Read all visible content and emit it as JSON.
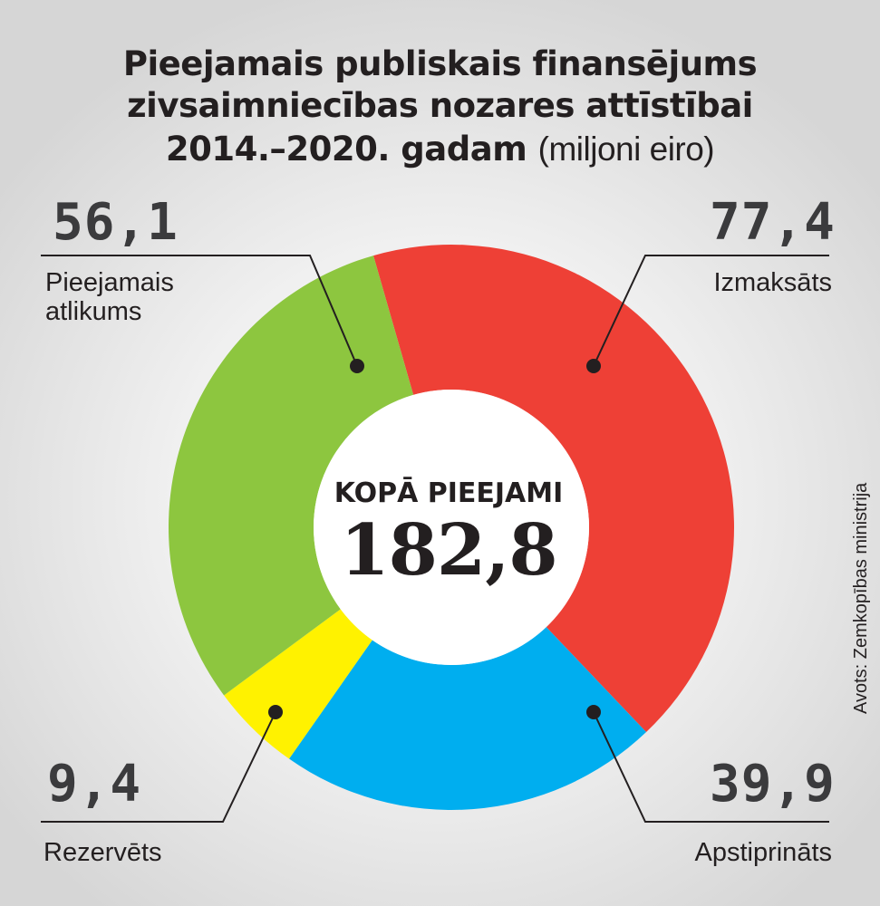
{
  "title": {
    "line1": "Pieejamais publiskais finansējums",
    "line2": "zivsaimniecības nozares attīstībai",
    "line3_bold": "2014.–2020. gadam",
    "line3_unit": "(miljoni eiro)"
  },
  "center": {
    "label": "KOPĀ PIEEJAMI",
    "value": "182,8"
  },
  "source": "Avots: Zemkopības ministrija",
  "colors": {
    "izmaksats": "#ee4036",
    "apstiprinats": "#00aeef",
    "rezervets": "#fff200",
    "atlikums": "#8dc63f"
  },
  "chart_data": {
    "type": "donut",
    "title": "Pieejamais publiskais finansējums zivsaimniecības nozares attīstībai 2014.–2020. gadam",
    "unit": "miljoni eiro",
    "total": 182.8,
    "segments": [
      {
        "key": "izmaksats",
        "label": "Izmaksāts",
        "value": 77.4,
        "value_text": "77,4",
        "color": "#ee4036"
      },
      {
        "key": "apstiprinats",
        "label": "Apstiprināts",
        "value": 39.9,
        "value_text": "39,9",
        "color": "#00aeef"
      },
      {
        "key": "rezervets",
        "label": "Rezervēts",
        "value": 9.4,
        "value_text": "9,4",
        "color": "#fff200"
      },
      {
        "key": "atlikums",
        "label": "Pieejamais atlikums",
        "value": 56.1,
        "value_text": "56,1",
        "color": "#8dc63f"
      }
    ]
  }
}
